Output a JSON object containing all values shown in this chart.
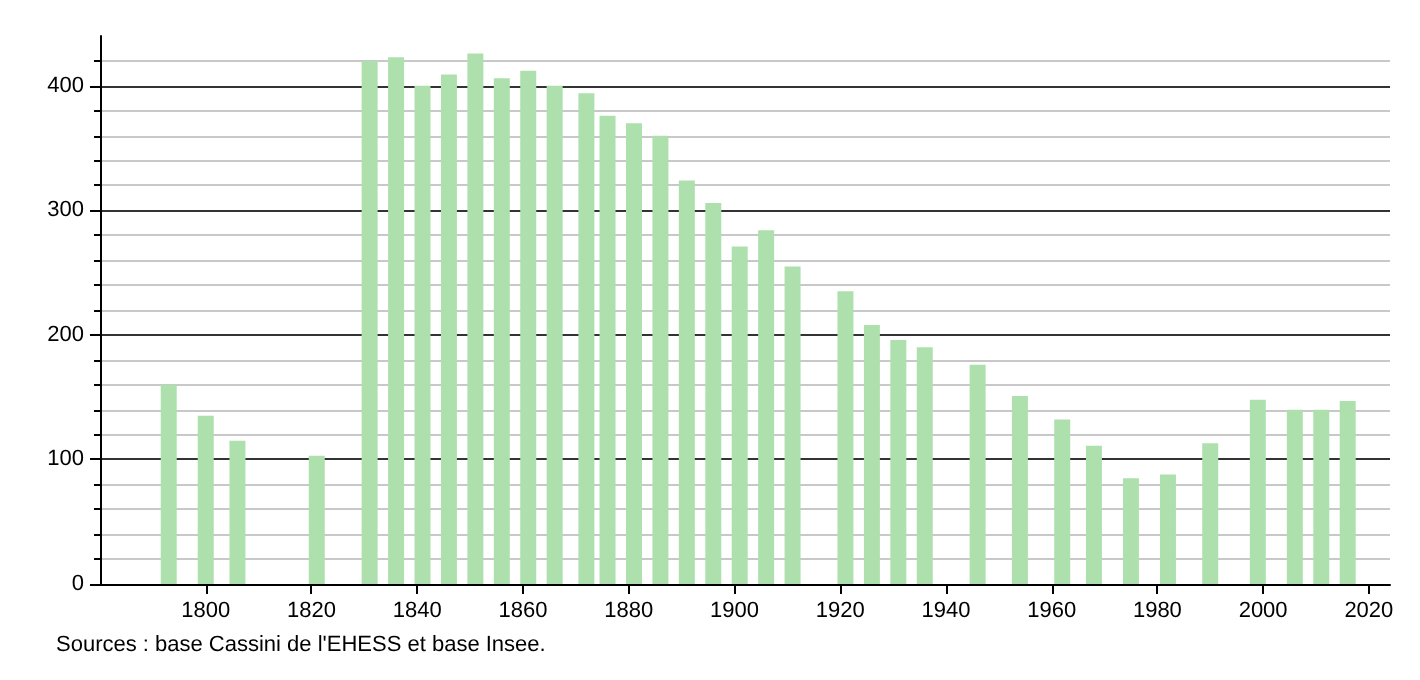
{
  "chart_data": {
    "type": "bar",
    "x": [
      1793,
      1800,
      1806,
      1821,
      1831,
      1836,
      1841,
      1846,
      1851,
      1856,
      1861,
      1866,
      1872,
      1876,
      1881,
      1886,
      1891,
      1896,
      1901,
      1906,
      1911,
      1921,
      1926,
      1931,
      1936,
      1946,
      1954,
      1962,
      1968,
      1975,
      1982,
      1990,
      1999,
      2006,
      2011,
      2016
    ],
    "values": [
      160,
      135,
      115,
      103,
      420,
      423,
      400,
      409,
      426,
      406,
      412,
      400,
      394,
      376,
      370,
      360,
      324,
      306,
      271,
      284,
      255,
      235,
      208,
      196,
      190,
      176,
      151,
      132,
      111,
      85,
      88,
      113,
      148,
      140,
      140,
      147
    ],
    "color": "#aee0ae",
    "xlim": [
      1780,
      2024
    ],
    "xticks": [
      1800,
      1820,
      1840,
      1860,
      1880,
      1900,
      1920,
      1940,
      1960,
      1980,
      2000,
      2020
    ],
    "ylim": [
      0,
      440
    ],
    "yticks": [
      0,
      100,
      200,
      300,
      400
    ],
    "grid": "y",
    "annotations": [
      "Sources : base Cassini de l'EHESS et base Insee."
    ]
  }
}
